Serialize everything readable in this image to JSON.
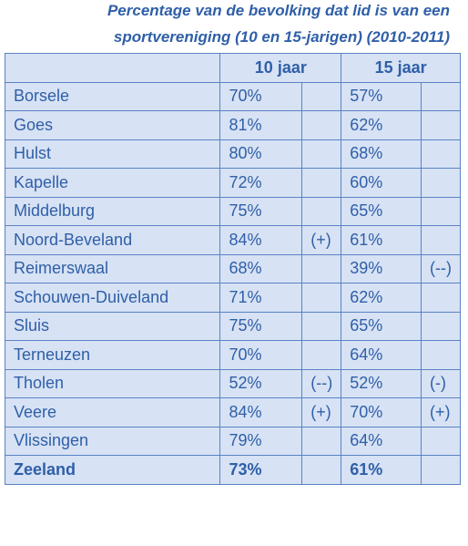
{
  "chart_data": {
    "type": "table",
    "title_line1": "Percentage van de bevolking dat lid is van een",
    "title_line2": "sportvereniging (10 en 15-jarigen) (2010-2011)",
    "headers": [
      "",
      "10 jaar",
      "15 jaar"
    ],
    "rows": [
      {
        "name": "Borsele",
        "v10": "70%",
        "m10": "",
        "v15": "57%",
        "m15": ""
      },
      {
        "name": "Goes",
        "v10": "81%",
        "m10": "",
        "v15": "62%",
        "m15": ""
      },
      {
        "name": "Hulst",
        "v10": "80%",
        "m10": "",
        "v15": "68%",
        "m15": ""
      },
      {
        "name": "Kapelle",
        "v10": "72%",
        "m10": "",
        "v15": "60%",
        "m15": ""
      },
      {
        "name": "Middelburg",
        "v10": "75%",
        "m10": "",
        "v15": "65%",
        "m15": ""
      },
      {
        "name": "Noord-Beveland",
        "v10": "84%",
        "m10": "(+)",
        "v15": "61%",
        "m15": ""
      },
      {
        "name": "Reimerswaal",
        "v10": "68%",
        "m10": "",
        "v15": "39%",
        "m15": "(--)"
      },
      {
        "name": "Schouwen-Duiveland",
        "v10": "71%",
        "m10": "",
        "v15": "62%",
        "m15": ""
      },
      {
        "name": "Sluis",
        "v10": "75%",
        "m10": "",
        "v15": "65%",
        "m15": ""
      },
      {
        "name": "Terneuzen",
        "v10": "70%",
        "m10": "",
        "v15": "64%",
        "m15": ""
      },
      {
        "name": "Tholen",
        "v10": "52%",
        "m10": "(--)",
        "v15": "52%",
        "m15": "(-)"
      },
      {
        "name": "Veere",
        "v10": "84%",
        "m10": "(+)",
        "v15": "70%",
        "m15": "(+)"
      },
      {
        "name": "Vlissingen",
        "v10": "79%",
        "m10": "",
        "v15": "64%",
        "m15": ""
      }
    ],
    "total": {
      "name": "Zeeland",
      "v10": "73%",
      "m10": "",
      "v15": "61%",
      "m15": ""
    },
    "colors": {
      "text": "#2f5fa8",
      "background": "#d7e2f4",
      "border": "#5a83c4"
    }
  }
}
